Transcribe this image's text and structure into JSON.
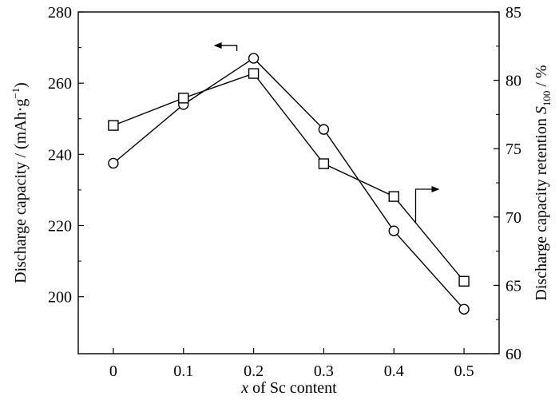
{
  "chart_data": {
    "type": "line",
    "x": [
      0,
      0.1,
      0.2,
      0.3,
      0.4,
      0.5
    ],
    "x_tick_labels": [
      "0",
      "0.1",
      "0.2",
      "0.3",
      "0.4",
      "0.5"
    ],
    "xlim": [
      -0.05,
      0.55
    ],
    "xlabel": {
      "italic": "x",
      "rest": " of Sc content"
    },
    "y_left": {
      "label": {
        "main": "Discharge capacity / (mAh·g",
        "sup": "−1",
        "close": ")"
      },
      "ticks": [
        200,
        220,
        240,
        260,
        280
      ],
      "tick_labels": [
        "200",
        "220",
        "240",
        "260",
        "280"
      ],
      "ylim": [
        184,
        280
      ]
    },
    "y_right": {
      "label": {
        "main": "Discharge capacity retention ",
        "italic": "S",
        "sub": "100",
        "tail": " / %"
      },
      "ticks": [
        60,
        65,
        70,
        75,
        80,
        85
      ],
      "tick_labels": [
        "60",
        "65",
        "70",
        "75",
        "80",
        "85"
      ],
      "ylim": [
        60,
        85
      ]
    },
    "series": [
      {
        "axis": "left",
        "marker": "circle",
        "values": [
          237.5,
          254,
          267,
          247,
          218.5,
          196.5
        ]
      },
      {
        "axis": "right",
        "marker": "square",
        "values": [
          76.7,
          78.7,
          80.5,
          73.9,
          71.5,
          65.3
        ]
      }
    ],
    "grid": false,
    "legend": "none",
    "annotations": [
      {
        "type": "arrow",
        "points_to": "left-axis",
        "series_index": 0
      },
      {
        "type": "arrow",
        "points_to": "right-axis",
        "series_index": 1
      }
    ],
    "colors": {
      "line": "#000000",
      "marker_fill": "#ffffff",
      "background": "#ffffff"
    }
  }
}
